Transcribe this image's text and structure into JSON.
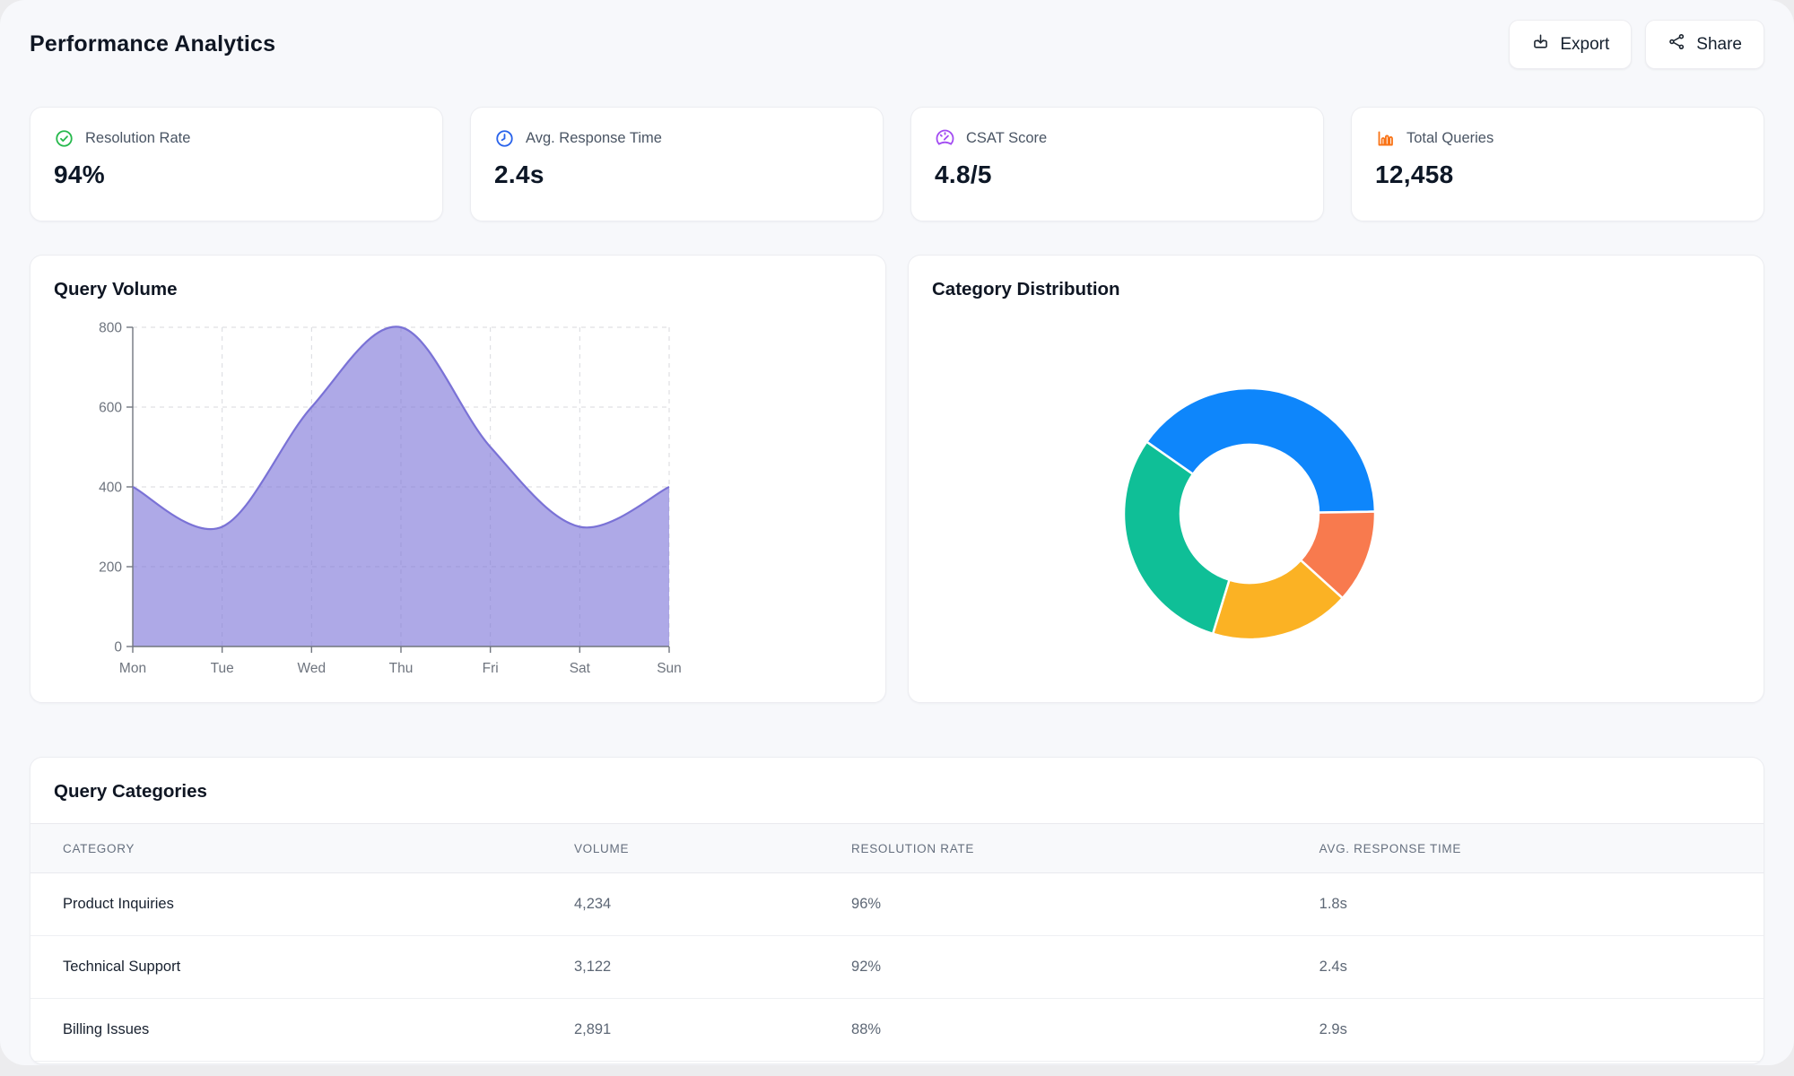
{
  "header": {
    "title": "Performance Analytics",
    "export_label": "Export",
    "share_label": "Share"
  },
  "stats": {
    "cards": [
      {
        "label": "Resolution Rate",
        "value": "94%",
        "icon": "check-circle-icon",
        "color": "#27b94d"
      },
      {
        "label": "Avg. Response Time",
        "value": "2.4s",
        "icon": "clock-icon",
        "color": "#2963eb"
      },
      {
        "label": "CSAT Score",
        "value": "4.8/5",
        "icon": "gauge-icon",
        "color": "#a34df2"
      },
      {
        "label": "Total Queries",
        "value": "12,458",
        "icon": "bar-chart-icon",
        "color": "#f97316"
      }
    ]
  },
  "charts": {
    "volume_title": "Query Volume",
    "distribution_title": "Category Distribution"
  },
  "table": {
    "title": "Query Categories",
    "columns": [
      "Category",
      "Volume",
      "Resolution Rate",
      "Avg. Response Time"
    ],
    "rows": [
      {
        "category": "Product Inquiries",
        "volume": "4,234",
        "resolution_rate": "96%",
        "avg_response_time": "1.8s"
      },
      {
        "category": "Technical Support",
        "volume": "3,122",
        "resolution_rate": "92%",
        "avg_response_time": "2.4s"
      },
      {
        "category": "Billing Issues",
        "volume": "2,891",
        "resolution_rate": "88%",
        "avg_response_time": "2.9s"
      }
    ]
  },
  "chart_data": [
    {
      "type": "area",
      "title": "Query Volume",
      "x": [
        "Mon",
        "Tue",
        "Wed",
        "Thu",
        "Fri",
        "Sat",
        "Sun"
      ],
      "values": [
        400,
        300,
        600,
        800,
        500,
        300,
        400
      ],
      "xlabel": "",
      "ylabel": "",
      "ylim": [
        0,
        800
      ],
      "yticks": [
        0,
        200,
        400,
        600,
        800
      ],
      "grid": true,
      "legend": "none",
      "fill_color": "rgba(124,116,216,0.62)",
      "line_color": "#7a72d6",
      "grid_color": "#d9dade",
      "axis_color": "#71767f",
      "tick_color": "#6e747e"
    },
    {
      "type": "pie",
      "title": "Category Distribution",
      "donut": true,
      "start_angle_deg": -55,
      "legend": "none",
      "segments": [
        {
          "label": "blue",
          "value": 40,
          "color": "#0e86fb"
        },
        {
          "label": "orange",
          "value": 12,
          "color": "#f87a4e"
        },
        {
          "label": "amber",
          "value": 18,
          "color": "#fbb224"
        },
        {
          "label": "teal",
          "value": 30,
          "color": "#0fbf97"
        }
      ]
    }
  ]
}
